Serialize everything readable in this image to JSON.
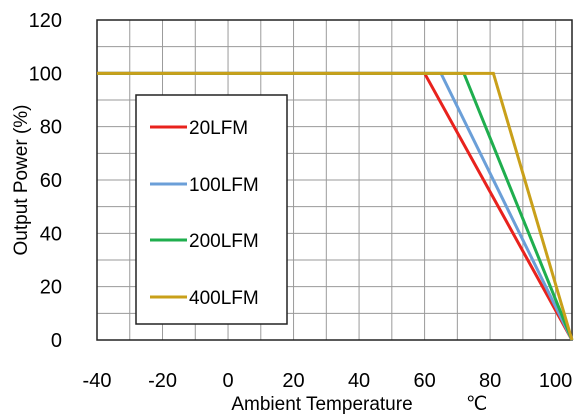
{
  "chart_data": {
    "type": "line",
    "title": "",
    "xlabel": "Ambient Temperature",
    "xunit": "℃",
    "ylabel": "Output Power (%)",
    "xlim": [
      -40,
      105
    ],
    "ylim": [
      0,
      120
    ],
    "x_ticks": [
      "-40",
      "-20",
      "0",
      "20",
      "40",
      "60",
      "80",
      "100"
    ],
    "y_ticks": [
      "0",
      "20",
      "40",
      "60",
      "80",
      "100",
      "120"
    ],
    "grid": true,
    "legend_position": "left",
    "series": [
      {
        "name": "20LFM",
        "color": "#e8221d",
        "x": [
          -40,
          60,
          105
        ],
        "y": [
          100,
          100,
          0
        ]
      },
      {
        "name": "100LFM",
        "color": "#6b9fd8",
        "x": [
          -40,
          65,
          105
        ],
        "y": [
          100,
          100,
          0
        ]
      },
      {
        "name": "200LFM",
        "color": "#1fae4e",
        "x": [
          -40,
          72,
          105
        ],
        "y": [
          100,
          100,
          0
        ]
      },
      {
        "name": "400LFM",
        "color": "#c9a01a",
        "x": [
          -40,
          81,
          105
        ],
        "y": [
          100,
          100,
          0
        ]
      }
    ]
  }
}
